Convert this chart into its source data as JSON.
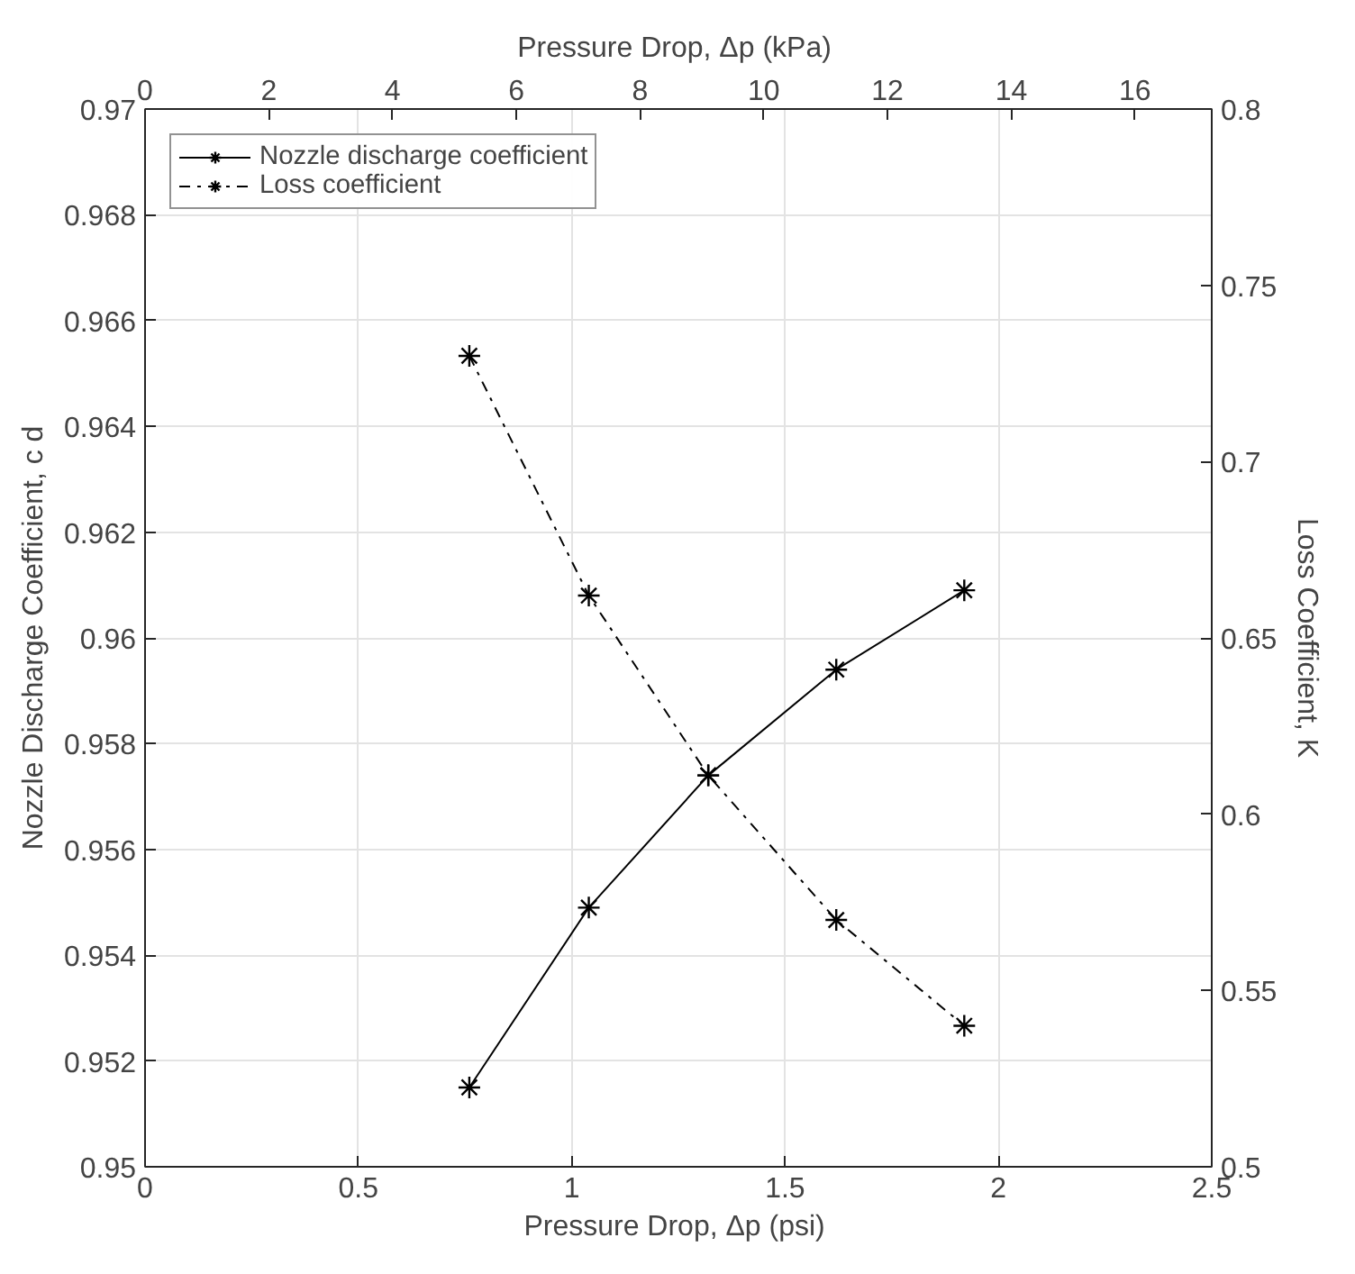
{
  "chart_data": {
    "type": "line",
    "xlabel": "Pressure Drop,  Δp (psi)",
    "x2label": "Pressure Drop,  Δp (kPa)",
    "ylabel": "Nozzle Discharge Coefficient, c d",
    "y2label": "Loss Coefficient, K",
    "x": [
      0.76,
      1.04,
      1.32,
      1.62,
      1.92
    ],
    "series": [
      {
        "name": "Nozzle discharge coefficient",
        "color": "#000000",
        "values": [
          0.9515,
          0.9549,
          0.9574,
          0.9594,
          0.9609
        ],
        "line_style": "solid"
      },
      {
        "name": "Loss coefficient",
        "color": "#000000",
        "values": [
          0.73,
          0.662,
          0.611,
          0.57,
          0.54
        ],
        "axis": "y2",
        "line_style": "dashdot"
      }
    ],
    "xlim": [
      0,
      2.5
    ],
    "xticks": [
      0,
      0.5,
      1,
      1.5,
      2,
      2.5
    ],
    "x2lim": [
      0,
      17.24
    ],
    "x2ticks": [
      0,
      2,
      4,
      6,
      8,
      10,
      12,
      14,
      16
    ],
    "ylim": [
      0.95,
      0.97
    ],
    "yticks": [
      0.95,
      0.952,
      0.954,
      0.956,
      0.958,
      0.96,
      0.962,
      0.964,
      0.966,
      0.968,
      0.97
    ],
    "y2lim": [
      0.5,
      0.8
    ],
    "y2ticks": [
      0.5,
      0.55,
      0.6,
      0.65,
      0.7,
      0.75,
      0.8
    ],
    "grid": true,
    "legend": "top left",
    "marker": "cross"
  }
}
